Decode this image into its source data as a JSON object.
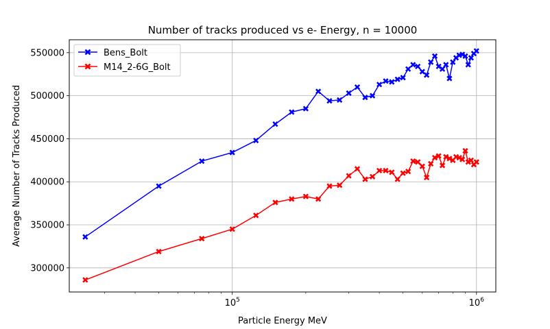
{
  "chart_data": {
    "type": "line",
    "title": "Number of tracks produced vs e- Energy, n = 10000",
    "xlabel": "Particle Energy MeV",
    "ylabel": "Average Number of Tracks Produced",
    "xscale": "log",
    "xlim": [
      21500,
      1200000
    ],
    "ylim": [
      272000,
      565000
    ],
    "grid": true,
    "legend_position": "top-left",
    "x_ticks": [
      {
        "value": 100000,
        "base": "10",
        "exp": "5"
      },
      {
        "value": 1000000,
        "base": "10",
        "exp": "6"
      }
    ],
    "y_ticks": [
      {
        "value": 300000,
        "label": "300000"
      },
      {
        "value": 350000,
        "label": "350000"
      },
      {
        "value": 400000,
        "label": "400000"
      },
      {
        "value": 450000,
        "label": "450000"
      },
      {
        "value": 500000,
        "label": "500000"
      },
      {
        "value": 550000,
        "label": "550000"
      }
    ],
    "x": [
      25000,
      50000,
      75000,
      100000,
      125000,
      150000,
      175000,
      200000,
      225000,
      250000,
      275000,
      300000,
      325000,
      350000,
      375000,
      400000,
      425000,
      450000,
      475000,
      500000,
      525000,
      550000,
      575000,
      600000,
      625000,
      650000,
      675000,
      700000,
      725000,
      750000,
      775000,
      800000,
      825000,
      850000,
      875000,
      900000,
      925000,
      950000,
      975000,
      1000000
    ],
    "series": [
      {
        "name": "Bens_Bolt",
        "color": "#0000ff",
        "values": [
          336000,
          395000,
          424000,
          434000,
          448000,
          467000,
          481000,
          485000,
          505000,
          494000,
          495000,
          503000,
          510000,
          498000,
          500000,
          513000,
          517000,
          516000,
          519000,
          521000,
          531000,
          536000,
          534000,
          528000,
          524000,
          539000,
          546000,
          534000,
          531000,
          536000,
          520000,
          539000,
          544000,
          547000,
          548000,
          546000,
          536000,
          544000,
          549000,
          552000
        ]
      },
      {
        "name": "M14_2-6G_Bolt",
        "color": "#ff0000",
        "values": [
          286000,
          319000,
          334000,
          345000,
          361000,
          376000,
          380000,
          383000,
          380000,
          395000,
          396000,
          407000,
          415000,
          403000,
          406000,
          413000,
          413000,
          411000,
          403000,
          410000,
          412000,
          424000,
          423000,
          418000,
          405000,
          421000,
          428000,
          430000,
          419000,
          429000,
          427000,
          425000,
          429000,
          428000,
          426000,
          436000,
          423000,
          425000,
          420000,
          423000
        ]
      }
    ]
  }
}
